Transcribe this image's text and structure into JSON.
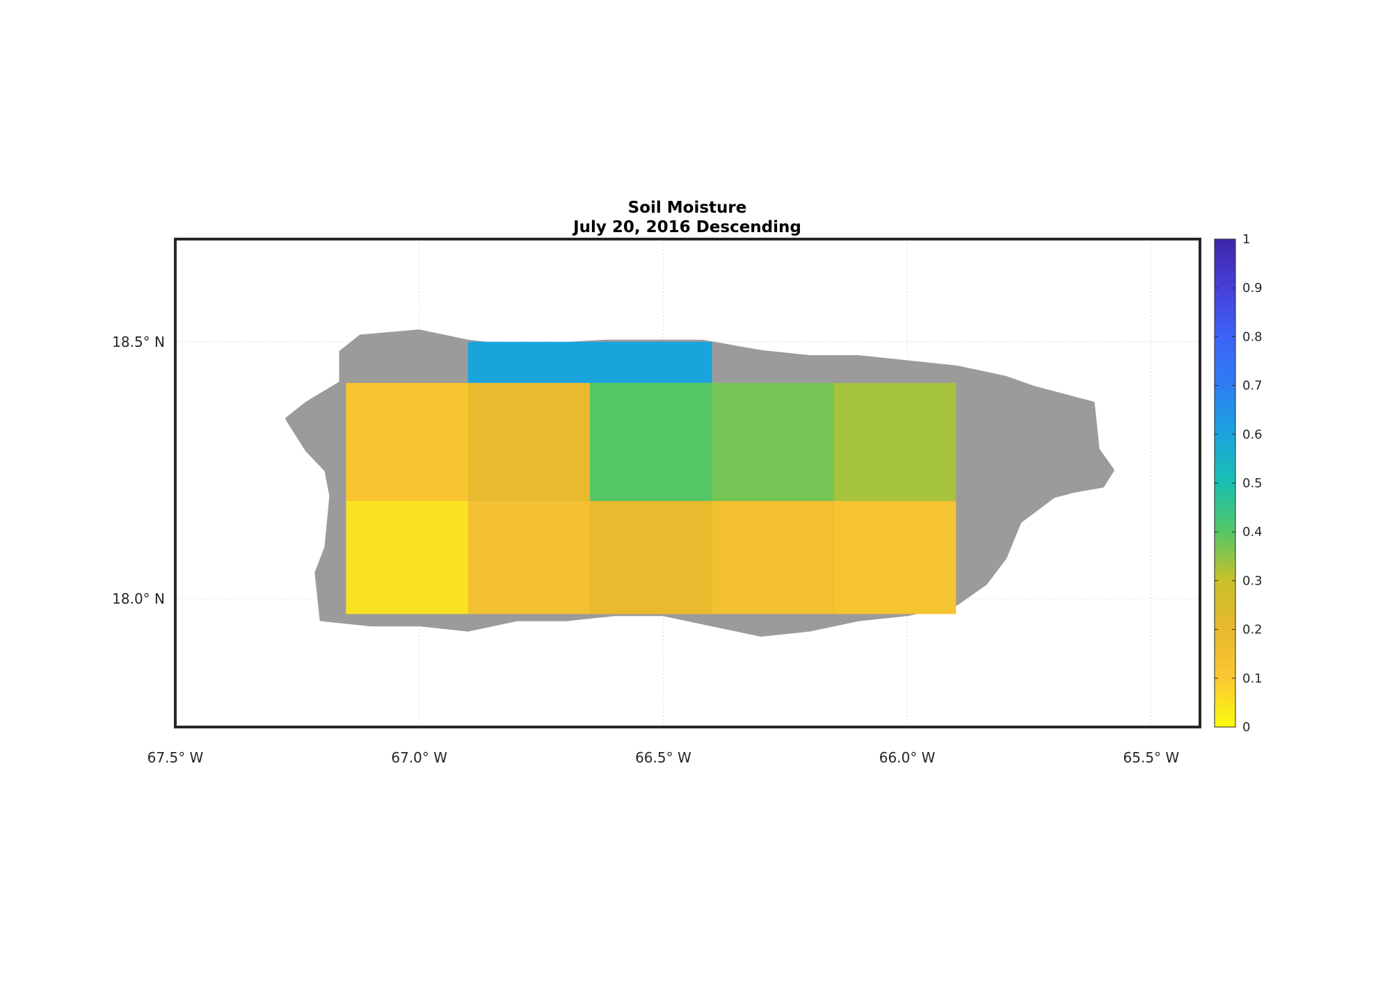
{
  "figure": {
    "title_line1": "Soil Moisture",
    "title_line2": "July 20, 2016 Descending",
    "land_color": "#9b9b9b",
    "grid": true
  },
  "chart_data": {
    "type": "heatmap",
    "title": "Soil Moisture",
    "subtitle": "July 20, 2016 Descending",
    "xlabel": "",
    "ylabel": "",
    "x_range": [
      -67.5,
      -65.4
    ],
    "y_range": [
      17.75,
      18.7
    ],
    "x_ticks": [
      {
        "value": -67.5,
        "label": "67.5° W"
      },
      {
        "value": -67.0,
        "label": "67.0° W"
      },
      {
        "value": -66.5,
        "label": "66.5° W"
      },
      {
        "value": -66.0,
        "label": "66.0° W"
      },
      {
        "value": -65.5,
        "label": "65.5° W"
      }
    ],
    "y_ticks": [
      {
        "value": 18.5,
        "label": "18.5° N"
      },
      {
        "value": 18.0,
        "label": "18.0° N"
      }
    ],
    "colorbar": {
      "range": [
        0,
        1
      ],
      "ticks": [
        "0",
        "0.1",
        "0.2",
        "0.3",
        "0.4",
        "0.5",
        "0.6",
        "0.7",
        "0.8",
        "0.9",
        "1"
      ],
      "colormap": "parula-reversed",
      "stops": [
        "#f9fb0e",
        "#fcc832",
        "#e8b82e",
        "#c8c129",
        "#55c666",
        "#19c0b0",
        "#1aa4dc",
        "#2e7ef2",
        "#3d63f7",
        "#4640d8",
        "#3e26a8"
      ]
    },
    "cells": [
      {
        "lon_range": [
          -66.9,
          -66.4
        ],
        "lat_range": [
          18.42,
          18.5
        ],
        "value": 0.6
      },
      {
        "lon_range": [
          -67.15,
          -66.9
        ],
        "lat_range": [
          18.19,
          18.42
        ],
        "value": 0.12
      },
      {
        "lon_range": [
          -66.9,
          -66.65
        ],
        "lat_range": [
          18.19,
          18.42
        ],
        "value": 0.19
      },
      {
        "lon_range": [
          -66.65,
          -66.4
        ],
        "lat_range": [
          18.19,
          18.42
        ],
        "value": 0.4
      },
      {
        "lon_range": [
          -66.4,
          -66.15
        ],
        "lat_range": [
          18.19,
          18.42
        ],
        "value": 0.37
      },
      {
        "lon_range": [
          -66.15,
          -65.9
        ],
        "lat_range": [
          18.19,
          18.42
        ],
        "value": 0.33
      },
      {
        "lon_range": [
          -67.15,
          -66.9
        ],
        "lat_range": [
          17.97,
          18.19
        ],
        "value": 0.05
      },
      {
        "lon_range": [
          -66.9,
          -66.65
        ],
        "lat_range": [
          17.97,
          18.19
        ],
        "value": 0.15
      },
      {
        "lon_range": [
          -66.65,
          -66.4
        ],
        "lat_range": [
          17.97,
          18.19
        ],
        "value": 0.19
      },
      {
        "lon_range": [
          -66.4,
          -66.15
        ],
        "lat_range": [
          17.97,
          18.19
        ],
        "value": 0.15
      },
      {
        "lon_range": [
          -66.15,
          -65.9
        ],
        "lat_range": [
          17.97,
          18.19
        ],
        "value": 0.13
      }
    ],
    "land_outline": [
      [
        -67.12,
        18.51
      ],
      [
        -67.0,
        18.52
      ],
      [
        -66.9,
        18.5
      ],
      [
        -66.8,
        18.49
      ],
      [
        -66.62,
        18.5
      ],
      [
        -66.42,
        18.5
      ],
      [
        -66.3,
        18.48
      ],
      [
        -66.2,
        18.47
      ],
      [
        -66.1,
        18.47
      ],
      [
        -66.0,
        18.46
      ],
      [
        -65.9,
        18.45
      ],
      [
        -65.8,
        18.43
      ],
      [
        -65.74,
        18.41
      ],
      [
        -65.66,
        18.39
      ],
      [
        -65.62,
        18.38
      ],
      [
        -65.61,
        18.29
      ],
      [
        -65.58,
        18.25
      ],
      [
        -65.6,
        18.22
      ],
      [
        -65.66,
        18.21
      ],
      [
        -65.7,
        18.2
      ],
      [
        -65.77,
        18.15
      ],
      [
        -65.8,
        18.08
      ],
      [
        -65.84,
        18.03
      ],
      [
        -65.9,
        17.99
      ],
      [
        -66.0,
        17.97
      ],
      [
        -66.1,
        17.96
      ],
      [
        -66.2,
        17.94
      ],
      [
        -66.3,
        17.93
      ],
      [
        -66.4,
        17.95
      ],
      [
        -66.5,
        17.97
      ],
      [
        -66.6,
        17.97
      ],
      [
        -66.7,
        17.96
      ],
      [
        -66.8,
        17.96
      ],
      [
        -66.9,
        17.94
      ],
      [
        -67.0,
        17.95
      ],
      [
        -67.1,
        17.95
      ],
      [
        -67.2,
        17.96
      ],
      [
        -67.21,
        18.05
      ],
      [
        -67.19,
        18.1
      ],
      [
        -67.18,
        18.2
      ],
      [
        -67.19,
        18.25
      ],
      [
        -67.23,
        18.29
      ],
      [
        -67.27,
        18.35
      ],
      [
        -67.23,
        18.38
      ],
      [
        -67.16,
        18.42
      ],
      [
        -67.16,
        18.48
      ]
    ]
  }
}
